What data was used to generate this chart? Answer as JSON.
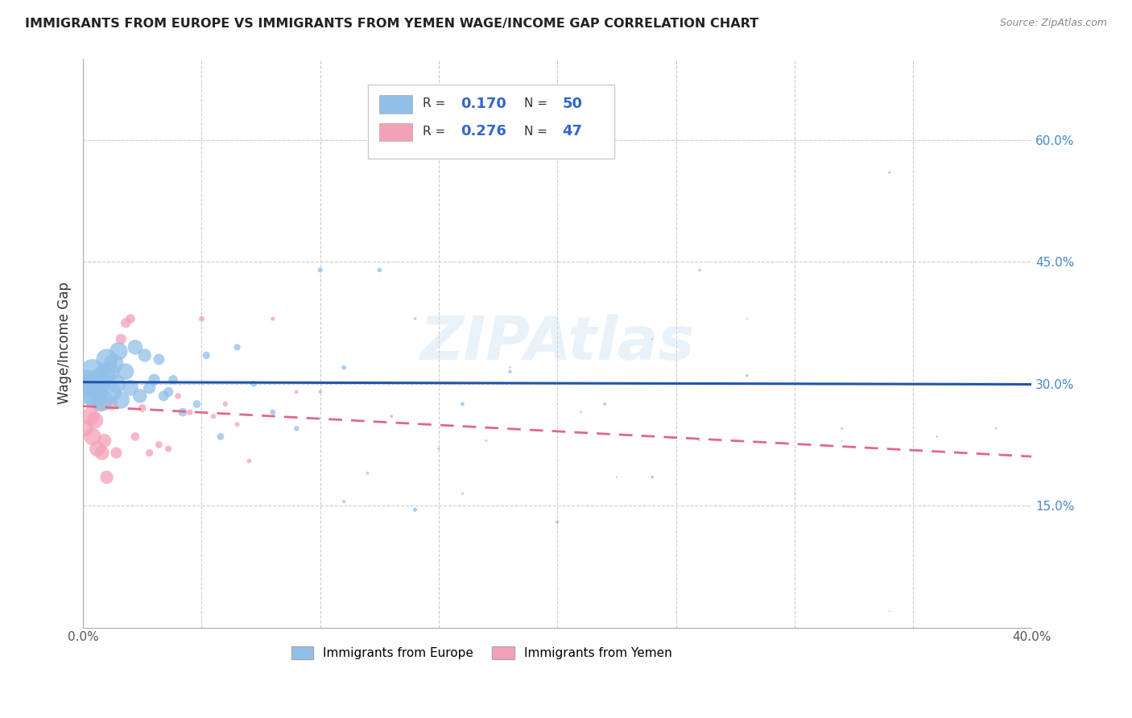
{
  "title": "IMMIGRANTS FROM EUROPE VS IMMIGRANTS FROM YEMEN WAGE/INCOME GAP CORRELATION CHART",
  "source": "Source: ZipAtlas.com",
  "ylabel": "Wage/Income Gap",
  "xlim": [
    0.0,
    0.4
  ],
  "ylim": [
    0.0,
    0.7
  ],
  "xtick_positions": [
    0.0,
    0.05,
    0.1,
    0.15,
    0.2,
    0.25,
    0.3,
    0.35,
    0.4
  ],
  "xtick_labels": [
    "0.0%",
    "",
    "",
    "",
    "",
    "",
    "",
    "",
    "40.0%"
  ],
  "ytick_right_positions": [
    0.15,
    0.3,
    0.45,
    0.6
  ],
  "ytick_right_labels": [
    "15.0%",
    "30.0%",
    "45.0%",
    "60.0%"
  ],
  "blue_color": "#90c0e8",
  "pink_color": "#f4a0b8",
  "blue_line_color": "#2255aa",
  "pink_line_color": "#e06888",
  "europe_x": [
    0.002,
    0.003,
    0.004,
    0.005,
    0.006,
    0.007,
    0.008,
    0.009,
    0.01,
    0.011,
    0.012,
    0.013,
    0.014,
    0.015,
    0.016,
    0.018,
    0.02,
    0.022,
    0.024,
    0.026,
    0.028,
    0.03,
    0.032,
    0.034,
    0.036,
    0.038,
    0.042,
    0.048,
    0.052,
    0.058,
    0.065,
    0.072,
    0.08,
    0.09,
    0.1,
    0.11,
    0.125,
    0.14,
    0.16,
    0.18,
    0.2,
    0.22,
    0.24,
    0.26,
    0.28,
    0.3,
    0.32,
    0.34,
    0.36,
    0.385
  ],
  "europe_y": [
    0.3,
    0.29,
    0.315,
    0.285,
    0.295,
    0.305,
    0.28,
    0.31,
    0.33,
    0.315,
    0.29,
    0.325,
    0.3,
    0.34,
    0.28,
    0.315,
    0.295,
    0.345,
    0.285,
    0.335,
    0.295,
    0.305,
    0.33,
    0.285,
    0.29,
    0.305,
    0.265,
    0.275,
    0.335,
    0.235,
    0.345,
    0.3,
    0.265,
    0.245,
    0.44,
    0.32,
    0.44,
    0.145,
    0.275,
    0.315,
    0.13,
    0.275,
    0.185,
    0.44,
    0.31,
    0.3,
    0.245,
    0.56,
    0.235,
    0.245
  ],
  "europe_sizes": [
    600,
    550,
    500,
    480,
    450,
    420,
    400,
    380,
    360,
    340,
    320,
    300,
    280,
    260,
    240,
    220,
    200,
    180,
    160,
    140,
    120,
    110,
    100,
    90,
    80,
    70,
    60,
    50,
    45,
    40,
    35,
    30,
    25,
    22,
    20,
    18,
    16,
    14,
    12,
    10,
    9,
    8,
    7,
    6,
    6,
    5,
    5,
    5,
    4,
    4
  ],
  "yemen_x": [
    0.001,
    0.002,
    0.003,
    0.004,
    0.005,
    0.006,
    0.007,
    0.008,
    0.009,
    0.01,
    0.012,
    0.014,
    0.016,
    0.018,
    0.02,
    0.022,
    0.025,
    0.028,
    0.032,
    0.036,
    0.04,
    0.045,
    0.05,
    0.055,
    0.06,
    0.065,
    0.07,
    0.08,
    0.09,
    0.1,
    0.11,
    0.12,
    0.13,
    0.14,
    0.15,
    0.16,
    0.17,
    0.18,
    0.195,
    0.21,
    0.225,
    0.24,
    0.26,
    0.28,
    0.3,
    0.32,
    0.34
  ],
  "yemen_y": [
    0.245,
    0.3,
    0.26,
    0.235,
    0.255,
    0.22,
    0.275,
    0.215,
    0.23,
    0.185,
    0.275,
    0.215,
    0.355,
    0.375,
    0.38,
    0.235,
    0.27,
    0.215,
    0.225,
    0.22,
    0.285,
    0.265,
    0.38,
    0.26,
    0.275,
    0.25,
    0.205,
    0.38,
    0.29,
    0.29,
    0.155,
    0.19,
    0.26,
    0.38,
    0.22,
    0.165,
    0.23,
    0.32,
    0.3,
    0.265,
    0.185,
    0.355,
    0.23,
    0.38,
    0.165,
    0.23,
    0.02
  ],
  "yemen_sizes": [
    200,
    280,
    260,
    240,
    220,
    200,
    185,
    170,
    155,
    140,
    120,
    105,
    90,
    80,
    70,
    60,
    50,
    45,
    40,
    35,
    30,
    28,
    25,
    22,
    20,
    18,
    16,
    14,
    12,
    10,
    9,
    8,
    7,
    6,
    6,
    5,
    5,
    4,
    4,
    4,
    3,
    3,
    3,
    3,
    2,
    2,
    2
  ]
}
